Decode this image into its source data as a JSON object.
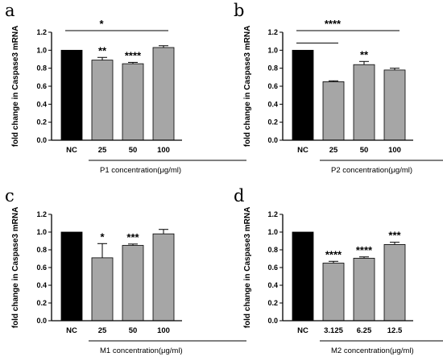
{
  "colors": {
    "control_bar": "#000000",
    "treatment_bar": "#a6a6a6",
    "axis": "#000000"
  },
  "chart_data": [
    {
      "type": "bar",
      "panel_label": "a",
      "ylabel": "fold change in Caspase3 mRNA",
      "xlabel": "P1 concentration(μg/ml)",
      "categories": [
        "NC",
        "25",
        "50",
        "100"
      ],
      "values": [
        1.0,
        0.89,
        0.85,
        1.03
      ],
      "errors": [
        0.0,
        0.03,
        0.015,
        0.02
      ],
      "stars": [
        "",
        "**",
        "****",
        ""
      ],
      "ylim": [
        0,
        1.2
      ],
      "yticks": [
        "0.0",
        "0.2",
        "0.4",
        "0.6",
        "0.8",
        "1.0",
        "1.2"
      ],
      "bracket": {
        "from": 0,
        "to": 3,
        "label": "*"
      }
    },
    {
      "type": "bar",
      "panel_label": "b",
      "ylabel": "fold change in Caspase3 mRNA",
      "xlabel": "P2 concentration(μg/ml)",
      "categories": [
        "NC",
        "25",
        "50",
        "100"
      ],
      "values": [
        1.0,
        0.65,
        0.84,
        0.78
      ],
      "errors": [
        0.0,
        0.01,
        0.035,
        0.02
      ],
      "stars": [
        "",
        "",
        "**",
        ""
      ],
      "ylim": [
        0,
        1.2
      ],
      "yticks": [
        "0.0",
        "0.2",
        "0.4",
        "0.6",
        "0.8",
        "1.0",
        "1.2"
      ],
      "bracket": {
        "from": 0,
        "to": 3,
        "label": "****",
        "short_to": 1
      }
    },
    {
      "type": "bar",
      "panel_label": "c",
      "ylabel": "fold change in Caspase3 mRNA",
      "xlabel": "M1 concentration(μg/ml)",
      "categories": [
        "NC",
        "25",
        "50",
        "100"
      ],
      "values": [
        1.0,
        0.71,
        0.85,
        0.98
      ],
      "errors": [
        0.0,
        0.16,
        0.015,
        0.05
      ],
      "stars": [
        "",
        "*",
        "***",
        ""
      ],
      "ylim": [
        0,
        1.2
      ],
      "yticks": [
        "0.0",
        "0.2",
        "0.4",
        "0.6",
        "0.8",
        "1.0",
        "1.2"
      ]
    },
    {
      "type": "bar",
      "panel_label": "d",
      "ylabel": "fold change in Caspase3 mRNA",
      "xlabel": "M2 concentration(μg/ml)",
      "categories": [
        "NC",
        "3.125",
        "6.25",
        "12.5"
      ],
      "values": [
        1.0,
        0.65,
        0.705,
        0.86
      ],
      "errors": [
        0.0,
        0.02,
        0.015,
        0.025
      ],
      "stars": [
        "",
        "****",
        "****",
        "***"
      ],
      "ylim": [
        0,
        1.2
      ],
      "yticks": [
        "0.0",
        "0.2",
        "0.4",
        "0.6",
        "0.8",
        "1.0",
        "1.2"
      ]
    }
  ]
}
